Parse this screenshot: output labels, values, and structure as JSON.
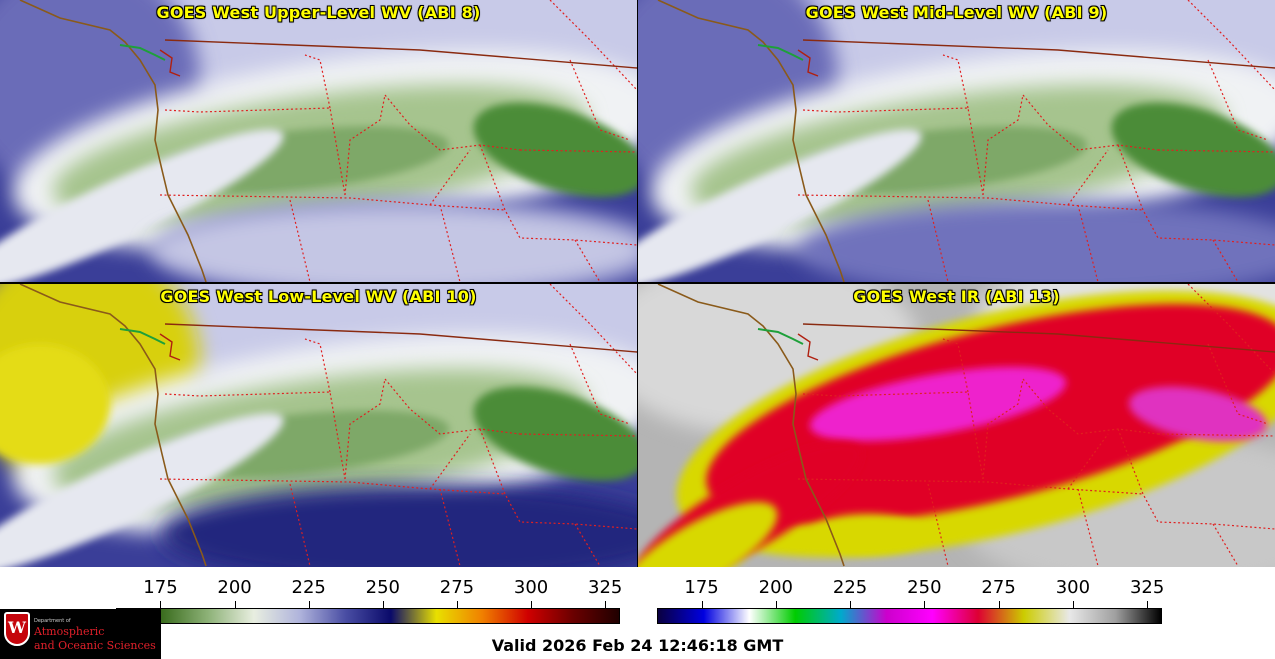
{
  "panels": [
    {
      "title": "GOES West Upper-Level WV (ABI 8)",
      "scheme": "wv",
      "band": 8
    },
    {
      "title": "GOES West Mid-Level WV (ABI 9)",
      "scheme": "wv",
      "band": 9
    },
    {
      "title": "GOES West Low-Level WV (ABI 10)",
      "scheme": "wv",
      "band": 10
    },
    {
      "title": "GOES West IR (ABI 13)",
      "scheme": "ir",
      "band": 13
    }
  ],
  "colorbars": [
    {
      "name": "water-vapor-colorbar",
      "ticks": [
        "175",
        "200",
        "225",
        "250",
        "275",
        "300",
        "325"
      ],
      "range": [
        160,
        330
      ],
      "stops": [
        "#0c2c06",
        "#3c6e20",
        "#8eb278",
        "#e8eee0",
        "#b0b4dc",
        "#4a4ea4",
        "#0a0a6a",
        "#e8e000",
        "#f08000",
        "#d00000",
        "#6a0000",
        "#200000"
      ]
    },
    {
      "name": "infrared-colorbar",
      "ticks": [
        "175",
        "200",
        "225",
        "250",
        "275",
        "300",
        "325"
      ],
      "range": [
        160,
        330
      ],
      "stops": [
        "#0a0040",
        "#0000e0",
        "#ffffff",
        "#00cc00",
        "#00aacc",
        "#cc00cc",
        "#ff00ff",
        "#dd0033",
        "#cccc00",
        "#e8e8e8",
        "#a0a0a0",
        "#000000"
      ]
    }
  ],
  "valid_time": "Valid 2026 Feb 24 12:46:18 GMT",
  "logo": {
    "initial": "W",
    "department": "Department of",
    "line1": "Atmospheric",
    "line2": "and Oceanic Sciences"
  },
  "colors": {
    "title_text": "#ffff00",
    "border_line": "#e02020",
    "coastline": "#8a5a1a"
  }
}
